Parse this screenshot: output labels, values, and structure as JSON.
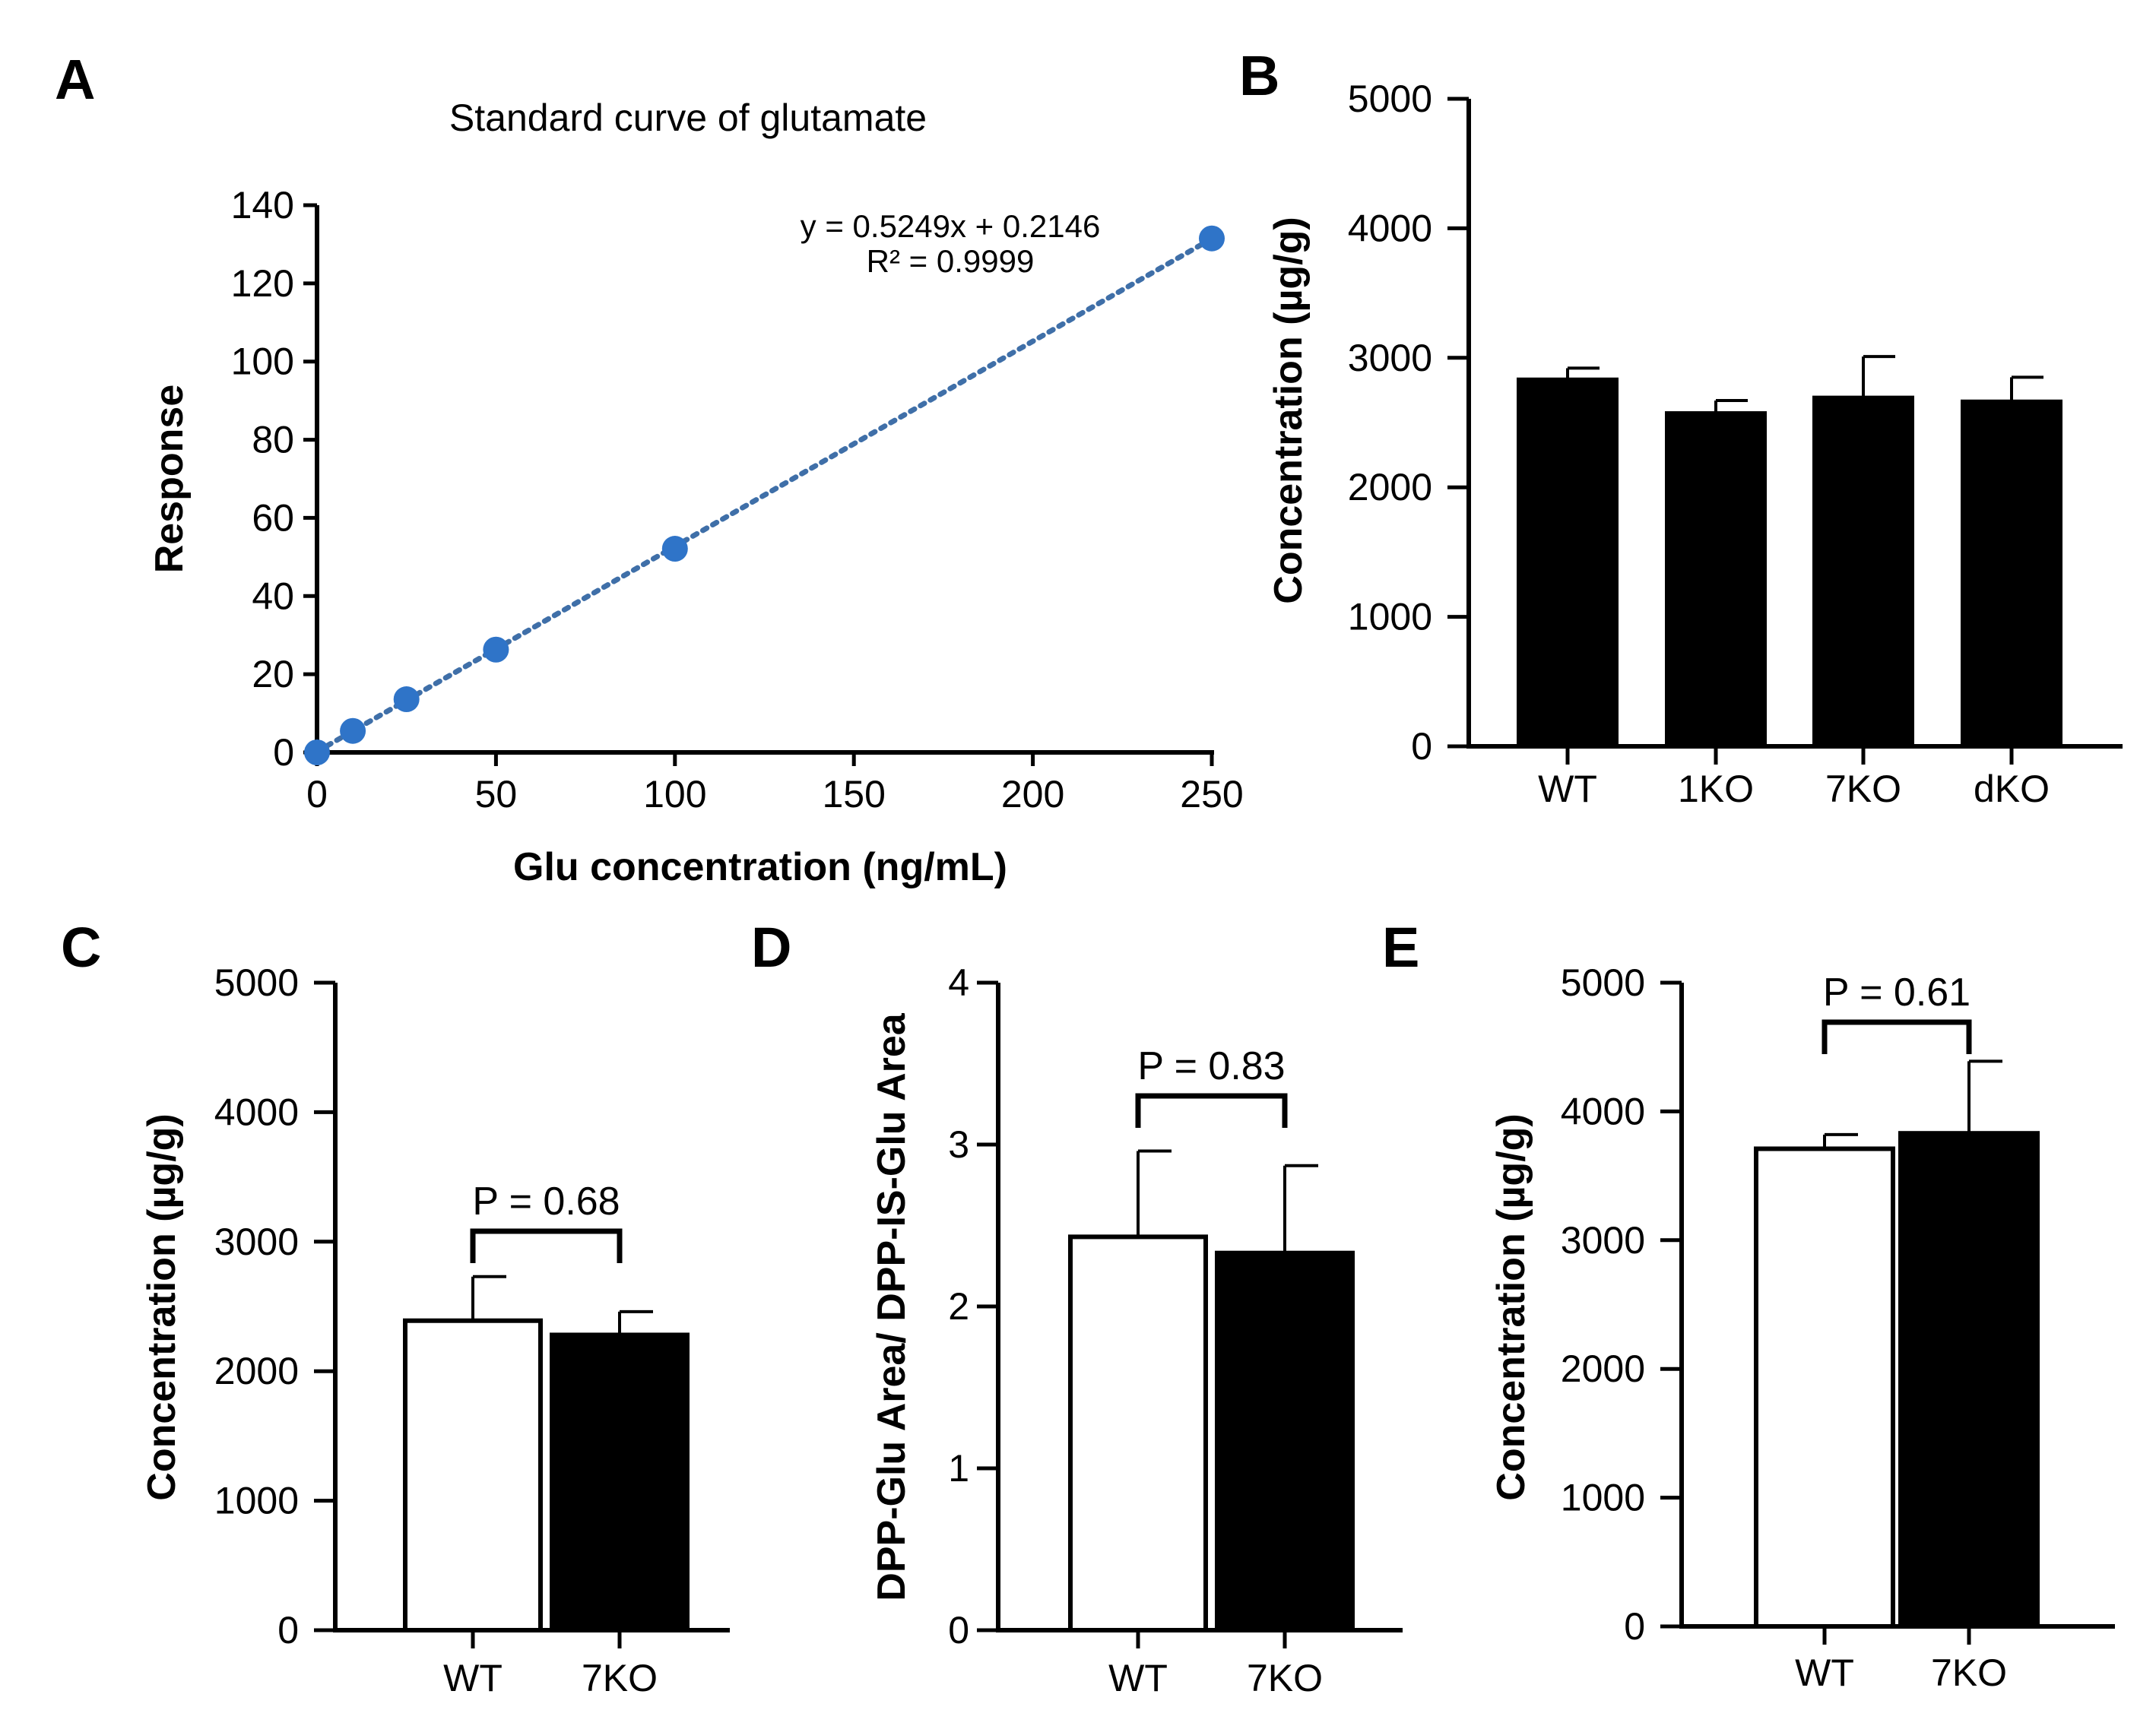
{
  "chart_data": [
    {
      "id": "A",
      "panel_label": "A",
      "type": "scatter",
      "title": "Standard curve of glutamate",
      "xlabel": "Glu concentration (ng/mL)",
      "ylabel": "Response",
      "xlim": [
        0,
        250
      ],
      "ylim": [
        0,
        140
      ],
      "xticks": [
        0,
        50,
        100,
        150,
        200,
        250
      ],
      "yticks": [
        0,
        20,
        40,
        60,
        80,
        100,
        120,
        140
      ],
      "x": [
        0,
        10,
        25,
        50,
        100,
        250
      ],
      "y": [
        0,
        5.5,
        13.6,
        26.3,
        52.1,
        131.5
      ],
      "trendline": {
        "slope": 0.5249,
        "intercept": 0.2146,
        "style": "dotted"
      },
      "equation": "y = 0.5249x + 0.2146",
      "r_squared": "R² = 0.9999",
      "marker_color": "#2f74c8",
      "line_color": "#3f6fa8"
    },
    {
      "id": "B",
      "panel_label": "B",
      "type": "bar",
      "ylabel": "Concentration (µg/g)",
      "categories": [
        "WT",
        "1KO",
        "7KO",
        "dKO"
      ],
      "values": [
        2830,
        2570,
        2690,
        2660
      ],
      "errors": [
        90,
        100,
        320,
        190
      ],
      "fills": [
        "#000000",
        "#000000",
        "#000000",
        "#000000"
      ],
      "ylim": [
        0,
        5000
      ],
      "yticks": [
        0,
        1000,
        2000,
        3000,
        4000,
        5000
      ]
    },
    {
      "id": "C",
      "panel_label": "C",
      "type": "bar",
      "ylabel": "Concentration (µg/g)",
      "categories": [
        "WT",
        "7KO"
      ],
      "values": [
        2390,
        2280
      ],
      "errors": [
        340,
        180
      ],
      "fills": [
        "#ffffff",
        "#000000"
      ],
      "ylim": [
        0,
        5000
      ],
      "yticks": [
        0,
        1000,
        2000,
        3000,
        4000,
        5000
      ],
      "p_value": "P = 0.68"
    },
    {
      "id": "D",
      "panel_label": "D",
      "type": "bar",
      "ylabel": "DPP-Glu Area/ DPP-IS-Glu Area",
      "categories": [
        "WT",
        "7KO"
      ],
      "values": [
        2.43,
        2.33
      ],
      "errors": [
        0.53,
        0.54
      ],
      "fills": [
        "#ffffff",
        "#000000"
      ],
      "ylim": [
        0,
        4
      ],
      "yticks": [
        0,
        1,
        2,
        3,
        4
      ],
      "p_value": "P = 0.83"
    },
    {
      "id": "E",
      "panel_label": "E",
      "type": "bar",
      "ylabel": "Concentration (µg/g)",
      "categories": [
        "WT",
        "7KO"
      ],
      "values": [
        3710,
        3830
      ],
      "errors": [
        110,
        560
      ],
      "fills": [
        "#ffffff",
        "#000000"
      ],
      "ylim": [
        0,
        5000
      ],
      "yticks": [
        0,
        1000,
        2000,
        3000,
        4000,
        5000
      ],
      "p_value": "P = 0.61"
    }
  ]
}
